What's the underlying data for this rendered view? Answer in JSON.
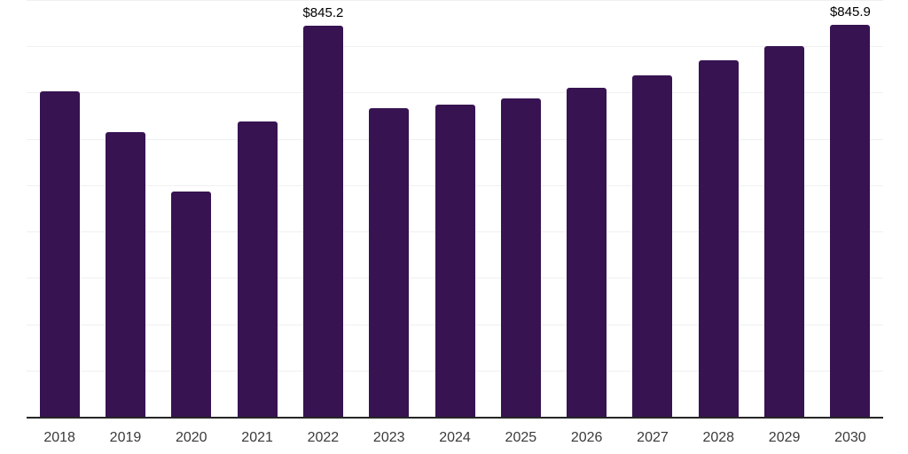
{
  "chart_data": {
    "type": "bar",
    "title": "",
    "xlabel": "",
    "ylabel": "",
    "categories": [
      "2018",
      "2019",
      "2020",
      "2021",
      "2022",
      "2023",
      "2024",
      "2025",
      "2026",
      "2027",
      "2028",
      "2029",
      "2030"
    ],
    "values": [
      703,
      614,
      486,
      637,
      845.2,
      667,
      674,
      688,
      710,
      737,
      769,
      801,
      845.9
    ],
    "bar_labels": {
      "2022": "$845.2",
      "2030": "$845.9"
    },
    "ylim": [
      0,
      900
    ],
    "grid": true,
    "grid_step": 100,
    "legend": false,
    "colors": {
      "bar": "#371351",
      "axis_line": "#262626",
      "gridline": "#f0f0f0",
      "value_label": "#000000",
      "tick_label": "#3a3a3a",
      "background": "#ffffff"
    }
  }
}
